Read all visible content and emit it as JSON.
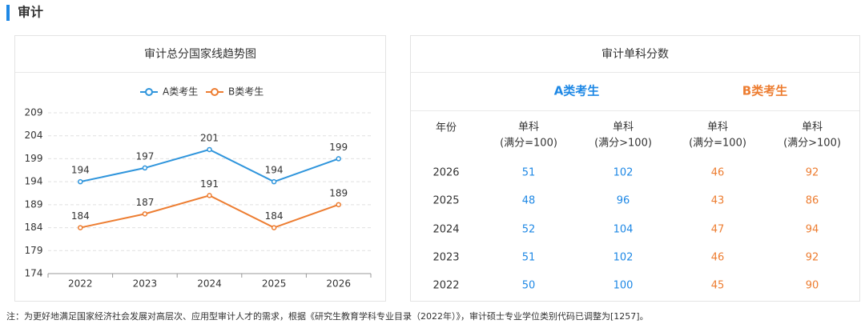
{
  "header": {
    "title": "审计"
  },
  "chart_data": {
    "type": "line",
    "title": "审计总分国家线趋势图",
    "categories": [
      "2022",
      "2023",
      "2024",
      "2025",
      "2026"
    ],
    "series": [
      {
        "name": "A类考生",
        "color": "#2f95dc",
        "values": [
          194,
          197,
          201,
          194,
          199
        ]
      },
      {
        "name": "B类考生",
        "color": "#ed7d31",
        "values": [
          184,
          187,
          191,
          184,
          189
        ]
      }
    ],
    "ylim": [
      174,
      209
    ],
    "yticks": [
      174,
      179,
      184,
      189,
      194,
      199,
      204,
      209
    ],
    "grid": true,
    "legend": "top"
  },
  "table": {
    "title": "审计单科分数",
    "groups": [
      "A类考生",
      "B类考生"
    ],
    "year_header": "年份",
    "columns": [
      {
        "title": "单科",
        "sub": "(满分=100)"
      },
      {
        "title": "单科",
        "sub": "(满分>100)"
      },
      {
        "title": "单科",
        "sub": "(满分=100)"
      },
      {
        "title": "单科",
        "sub": "(满分>100)"
      }
    ],
    "rows": [
      [
        "2026",
        51,
        102,
        46,
        92
      ],
      [
        "2025",
        48,
        96,
        43,
        86
      ],
      [
        "2024",
        52,
        104,
        47,
        94
      ],
      [
        "2023",
        51,
        102,
        46,
        92
      ],
      [
        "2022",
        50,
        100,
        45,
        90
      ]
    ]
  },
  "note": "注：为更好地满足国家经济社会发展对高层次、应用型审计人才的需求，根据《研究生教育学科专业目录（2022年）》，审计硕士专业学位类别代码已调整为[1257]。"
}
